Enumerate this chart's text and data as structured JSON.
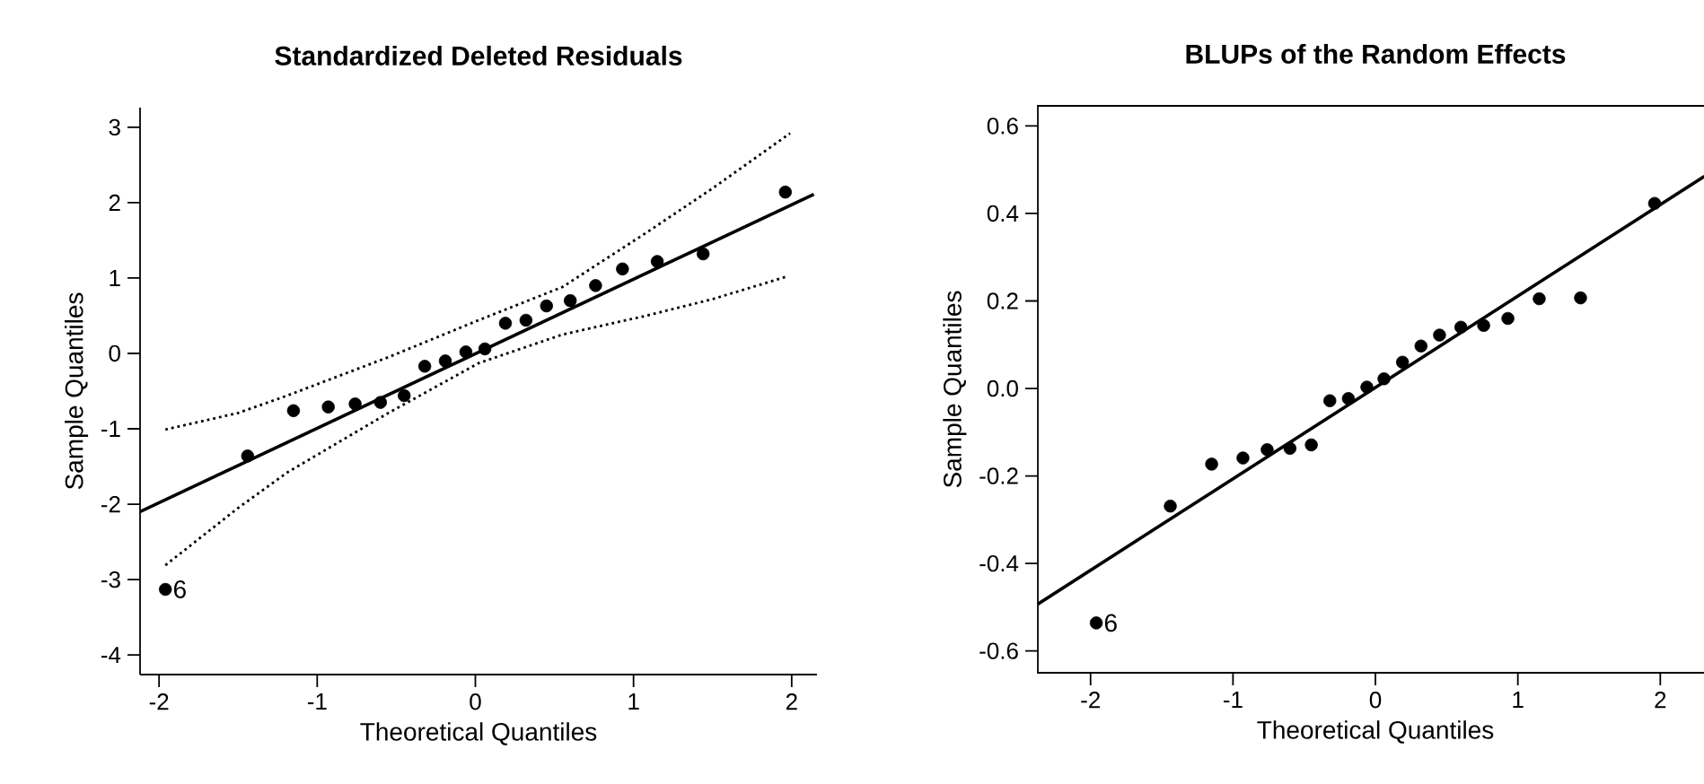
{
  "chart_data": [
    {
      "type": "scatter",
      "title": "Standardized Deleted Residuals",
      "xlabel": "Theoretical Quantiles",
      "ylabel": "Sample Quantiles",
      "x": [
        -1.96,
        -1.44,
        -1.15,
        -0.93,
        -0.76,
        -0.6,
        -0.45,
        -0.32,
        -0.19,
        -0.06,
        0.06,
        0.19,
        0.32,
        0.45,
        0.6,
        0.76,
        0.93,
        1.15,
        1.44,
        1.96
      ],
      "series": [
        {
          "color": "#000000",
          "marker": "circle",
          "values": [
            -3.13,
            -1.36,
            -0.76,
            -0.71,
            -0.67,
            -0.65,
            -0.56,
            -0.17,
            -0.1,
            0.02,
            0.06,
            0.4,
            0.44,
            0.63,
            0.7,
            0.9,
            1.12,
            1.22,
            1.32,
            2.14
          ]
        },
        {
          "type": "line",
          "color": "#000000",
          "line_style": "solid",
          "marker": "none",
          "x": [
            -2.12,
            2.14
          ],
          "values": [
            -2.1,
            2.11
          ]
        },
        {
          "type": "line",
          "color": "#000000",
          "line_style": "dotted",
          "marker": "none",
          "x": [
            -1.96,
            -1.5,
            -1.19,
            -0.55,
            0.02,
            0.55,
            1.08,
            1.5,
            1.99
          ],
          "values": [
            -1.01,
            -0.79,
            -0.56,
            -0.05,
            0.44,
            0.88,
            1.6,
            2.19,
            2.92
          ]
        },
        {
          "type": "line",
          "color": "#000000",
          "line_style": "dotted",
          "marker": "none",
          "x": [
            -1.96,
            -1.5,
            -1.19,
            -0.55,
            0.02,
            0.55,
            1.08,
            1.5,
            1.97
          ],
          "values": [
            -2.81,
            -2.05,
            -1.58,
            -0.79,
            -0.13,
            0.25,
            0.5,
            0.72,
            1.02
          ]
        }
      ],
      "xlim": [
        -2.12,
        2.16
      ],
      "ylim": [
        -4.26,
        3.26
      ],
      "xticks": [
        -2,
        -1,
        0,
        1,
        2
      ],
      "yticks": [
        -4,
        -3,
        -2,
        -1,
        0,
        1,
        2,
        3
      ],
      "annotations": [
        {
          "text": "6",
          "x": -1.96,
          "y": -3.13
        }
      ]
    },
    {
      "type": "scatter",
      "title": "BLUPs of the Random Effects",
      "xlabel": "Theoretical Quantiles",
      "ylabel": "Sample Quantiles",
      "x": [
        -1.96,
        -1.44,
        -1.15,
        -0.93,
        -0.76,
        -0.6,
        -0.45,
        -0.32,
        -0.19,
        -0.06,
        0.06,
        0.19,
        0.32,
        0.45,
        0.6,
        0.76,
        0.93,
        1.15,
        1.44,
        1.96
      ],
      "series": [
        {
          "color": "#000000",
          "marker": "circle",
          "values": [
            -0.536,
            -0.269,
            -0.173,
            -0.159,
            -0.14,
            -0.137,
            -0.129,
            -0.028,
            -0.023,
            0.003,
            0.022,
            0.06,
            0.097,
            0.122,
            0.14,
            0.144,
            0.16,
            0.205,
            0.207,
            0.423
          ]
        },
        {
          "type": "line",
          "color": "#000000",
          "line_style": "solid",
          "marker": "none",
          "x": [
            -2.37,
            2.31
          ],
          "values": [
            -0.493,
            0.485
          ]
        }
      ],
      "xlim": [
        -2.37,
        2.37
      ],
      "ylim": [
        -0.65,
        0.646
      ],
      "xticks": [
        -2,
        -1,
        0,
        1,
        2
      ],
      "yticks": [
        -0.6,
        -0.4,
        -0.2,
        {
          "value": 0,
          "label": "0.0"
        },
        0.2,
        0.4,
        0.6
      ],
      "annotations": [
        {
          "text": "6",
          "x": -1.96,
          "y": -0.536
        }
      ]
    }
  ]
}
